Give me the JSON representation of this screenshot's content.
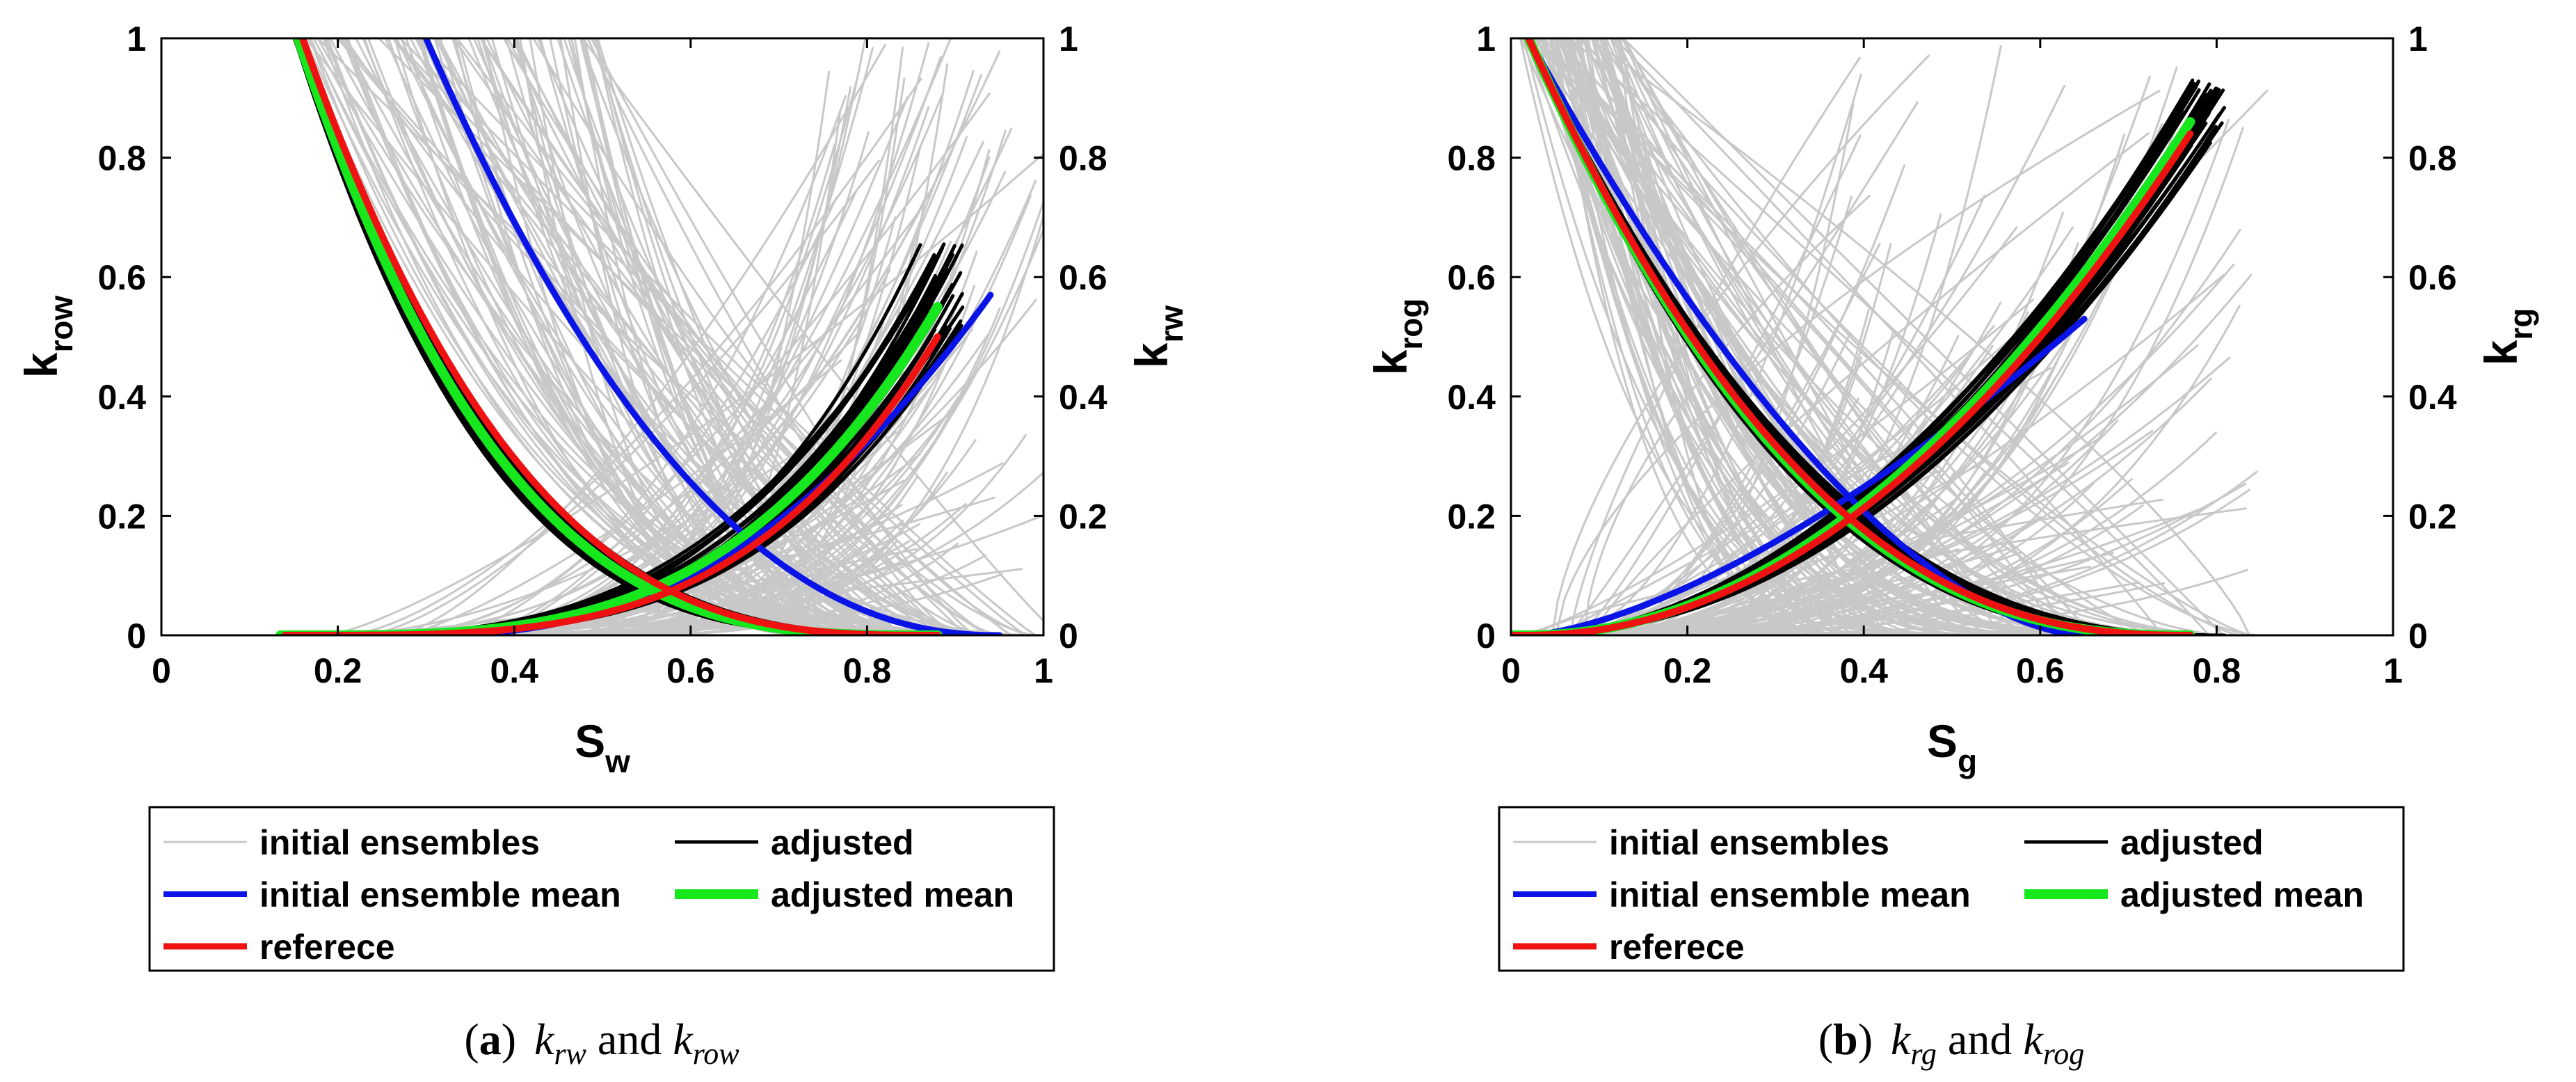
{
  "chart_data": [
    {
      "id": "a",
      "type": "line",
      "caption": {
        "label": "a",
        "paren_open": "(",
        "paren_close": ")",
        "text_1": "k",
        "sub_1": "rw",
        "conj": "and",
        "text_2": "k",
        "sub_2": "row"
      },
      "xlabel": {
        "main": "S",
        "sub": "w"
      },
      "ylabel_left": {
        "main": "k",
        "sub": "row"
      },
      "ylabel_right": {
        "main": "k",
        "sub": "rw"
      },
      "xlim": [
        0,
        1
      ],
      "ylim": [
        0,
        1
      ],
      "xticks": [
        "0",
        "0.2",
        "0.4",
        "0.6",
        "0.8",
        "1"
      ],
      "yticks": [
        "0",
        "0.2",
        "0.4",
        "0.6",
        "0.8",
        "1"
      ],
      "yticks_right": [
        "0",
        "0.2",
        "0.4",
        "0.6",
        "0.8",
        "1"
      ],
      "colors": {
        "initial": "#c8c8c8",
        "adjusted": "#000000",
        "initial_mean": "#0a14e6",
        "adjusted_mean": "#17e81e",
        "reference": "#ef1212"
      },
      "series": [
        {
          "name": "initial ensemble mean",
          "curve": "krow",
          "x0": 0.3,
          "x1": 0.95,
          "n": 2.2
        },
        {
          "name": "initial ensemble mean",
          "curve": "krw",
          "x0": 0.3,
          "x1": 0.94,
          "n": 2.3,
          "ymax": 0.57
        },
        {
          "name": "adjusted mean",
          "curve": "krow",
          "x0": 0.155,
          "x1": 0.88,
          "n": 3.2
        },
        {
          "name": "adjusted mean",
          "curve": "krw",
          "x0": 0.155,
          "x1": 0.88,
          "n": 3.3,
          "ymax": 0.55
        },
        {
          "name": "referece",
          "curve": "krow",
          "x0": 0.16,
          "x1": 0.88,
          "n": 3.0
        },
        {
          "name": "referece",
          "curve": "krw",
          "x0": 0.16,
          "x1": 0.88,
          "n": 3.5,
          "ymax": 0.5
        }
      ]
    },
    {
      "id": "b",
      "type": "line",
      "caption": {
        "label": "b",
        "paren_open": "(",
        "paren_close": ")",
        "text_1": "k",
        "sub_1": "rg",
        "conj": "and",
        "text_2": "k",
        "sub_2": "rog"
      },
      "xlabel": {
        "main": "S",
        "sub": "g"
      },
      "ylabel_left": {
        "main": "k",
        "sub": "rog"
      },
      "ylabel_right": {
        "main": "k",
        "sub": "rg"
      },
      "xlim": [
        0,
        1
      ],
      "ylim": [
        0,
        1
      ],
      "xticks": [
        "0",
        "0.2",
        "0.4",
        "0.6",
        "0.8",
        "1"
      ],
      "yticks": [
        "0",
        "0.2",
        "0.4",
        "0.6",
        "0.8",
        "1"
      ],
      "yticks_right": [
        "0",
        "0.2",
        "0.4",
        "0.6",
        "0.8",
        "1"
      ],
      "colors": {
        "initial": "#c8c8c8",
        "adjusted": "#000000",
        "initial_mean": "#0a14e6",
        "adjusted_mean": "#17e81e",
        "reference": "#ef1212"
      },
      "series": [
        {
          "name": "initial ensemble mean",
          "curve": "krog",
          "x0": 0.02,
          "x1": 0.65,
          "n": 1.7
        },
        {
          "name": "initial ensemble mean",
          "curve": "krg",
          "x0": 0.02,
          "x1": 0.65,
          "n": 1.5,
          "ymax": 0.53
        },
        {
          "name": "adjusted mean",
          "curve": "krog",
          "x0": 0.02,
          "x1": 0.77,
          "n": 2.5
        },
        {
          "name": "adjusted mean",
          "curve": "krg",
          "x0": 0.02,
          "x1": 0.77,
          "n": 2.0,
          "ymax": 0.86
        },
        {
          "name": "referece",
          "curve": "krog",
          "x0": 0.02,
          "x1": 0.77,
          "n": 2.45
        },
        {
          "name": "referece",
          "curve": "krg",
          "x0": 0.02,
          "x1": 0.77,
          "n": 2.02,
          "ymax": 0.84
        }
      ]
    }
  ],
  "legend": {
    "items": [
      {
        "key": "initial",
        "label": "initial ensembles",
        "color": "#c8c8c8"
      },
      {
        "key": "adjusted",
        "label": "adjusted",
        "color": "#000000"
      },
      {
        "key": "initial_mean",
        "label": "initial ensemble mean",
        "color": "#0a14e6"
      },
      {
        "key": "adjusted_mean",
        "label": "adjusted mean",
        "color": "#17e81e"
      },
      {
        "key": "reference",
        "label": "referece",
        "color": "#ef1212"
      }
    ]
  }
}
